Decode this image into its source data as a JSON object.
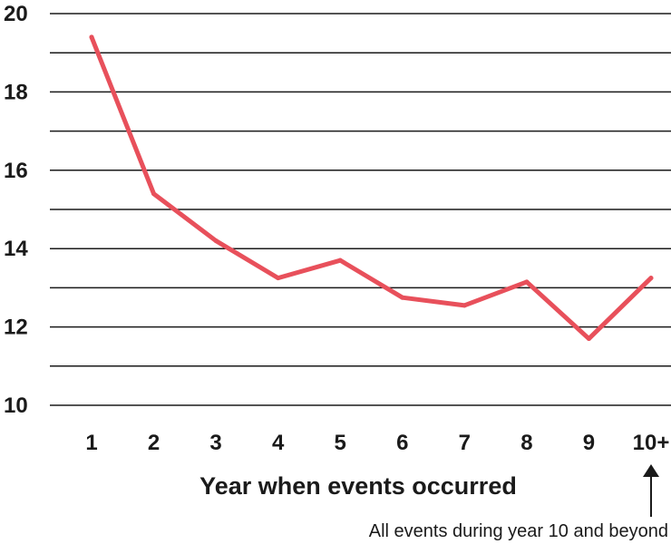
{
  "chart_data": {
    "type": "line",
    "title": "",
    "xlabel": "Year when events occurred",
    "ylabel": "",
    "categories": [
      "1",
      "2",
      "3",
      "4",
      "5",
      "6",
      "7",
      "8",
      "9",
      "10+"
    ],
    "series": [
      {
        "values": [
          19.4,
          15.4,
          14.2,
          13.25,
          13.7,
          12.75,
          12.55,
          13.15,
          11.7,
          13.25
        ],
        "color": "#e8505b"
      }
    ],
    "ylim": [
      10,
      20
    ],
    "yticks": [
      10,
      12,
      14,
      16,
      18,
      20
    ],
    "ygrid_step": 1,
    "grid": true,
    "annotation": {
      "text": "All events during year 10 and beyond",
      "target_category": "10+"
    }
  }
}
